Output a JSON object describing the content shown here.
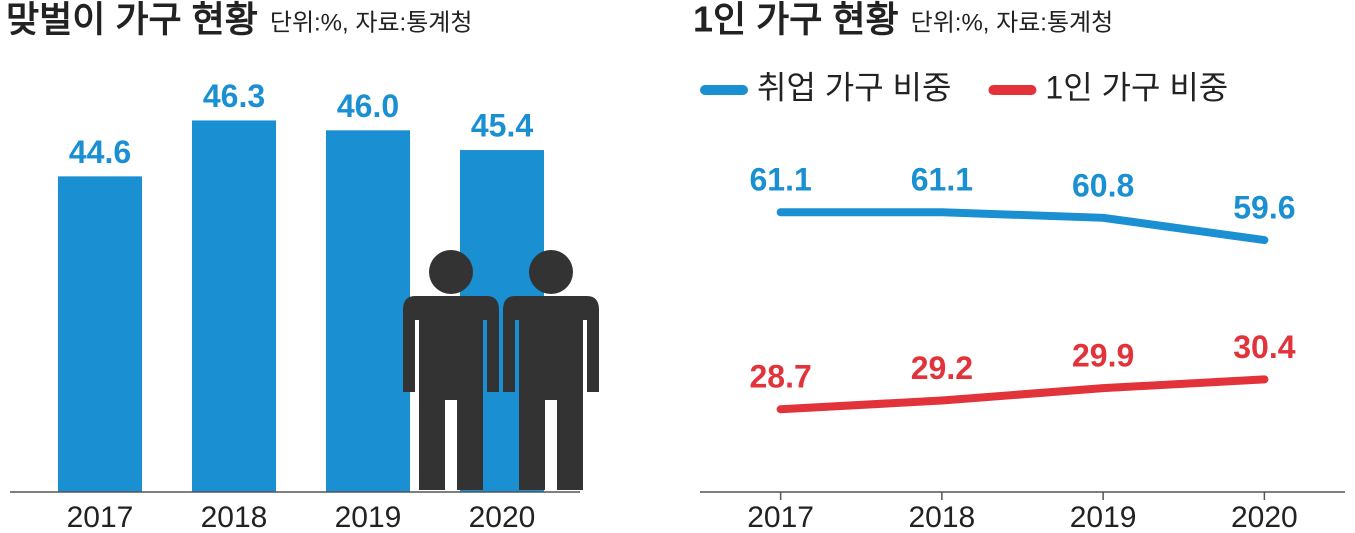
{
  "chart_data": [
    {
      "type": "bar",
      "title": "맞벌이 가구 현황",
      "subtitle": "단위:%, 자료:통계청",
      "categories": [
        "2017",
        "2018",
        "2019",
        "2020"
      ],
      "values": [
        44.6,
        46.3,
        46.0,
        45.4
      ],
      "value_labels": [
        "44.6",
        "46.3",
        "46.0",
        "45.4"
      ],
      "color": "#1a90d3",
      "ylim": [
        35,
        47.5
      ]
    },
    {
      "type": "line",
      "title": "1인 가구 현황",
      "subtitle": "단위:%, 자료:통계청",
      "categories": [
        "2017",
        "2018",
        "2019",
        "2020"
      ],
      "series": [
        {
          "name": "취업 가구 비중",
          "color": "#1a90d3",
          "values": [
            61.1,
            61.1,
            60.8,
            59.6
          ]
        },
        {
          "name": "1인 가구 비중",
          "color": "#e2323a",
          "values": [
            28.7,
            29.2,
            29.9,
            30.4
          ],
          "axis": "y2"
        }
      ],
      "ylim": [
        46,
        65
      ],
      "y2lim": [
        24,
        44
      ]
    }
  ]
}
